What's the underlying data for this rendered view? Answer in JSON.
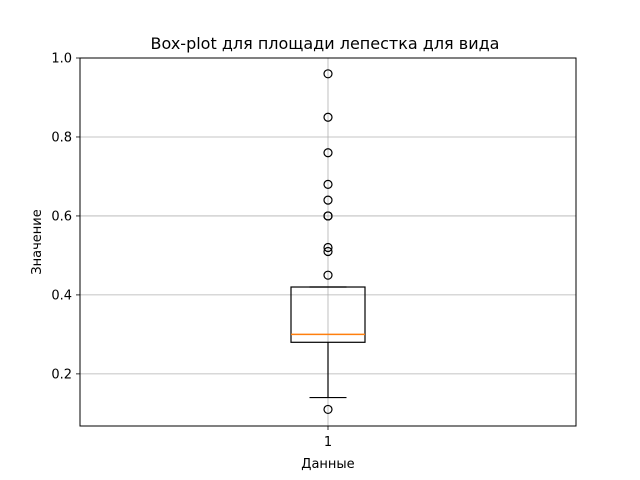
{
  "chart_data": {
    "type": "box",
    "title": "Box-plot для площади лепестка для вида",
    "xlabel": "Данные",
    "ylabel": "Значение",
    "categories": [
      "1"
    ],
    "ylim": [
      0.068,
      1.0
    ],
    "yticks": [
      0.2,
      0.4,
      0.6,
      0.8,
      1.0
    ],
    "ytick_labels": [
      "0.2",
      "0.4",
      "0.6",
      "0.8",
      "1.0"
    ],
    "grid": true,
    "box": {
      "whisker_low": 0.14,
      "q1": 0.28,
      "median": 0.3,
      "q3": 0.42,
      "whisker_high": 0.42
    },
    "outliers": [
      0.11,
      0.45,
      0.51,
      0.52,
      0.6,
      0.6,
      0.64,
      0.68,
      0.76,
      0.85,
      0.96
    ],
    "colors": {
      "median": "#ff7f0e",
      "box": "#000000",
      "grid": "#b0b0b0"
    }
  }
}
